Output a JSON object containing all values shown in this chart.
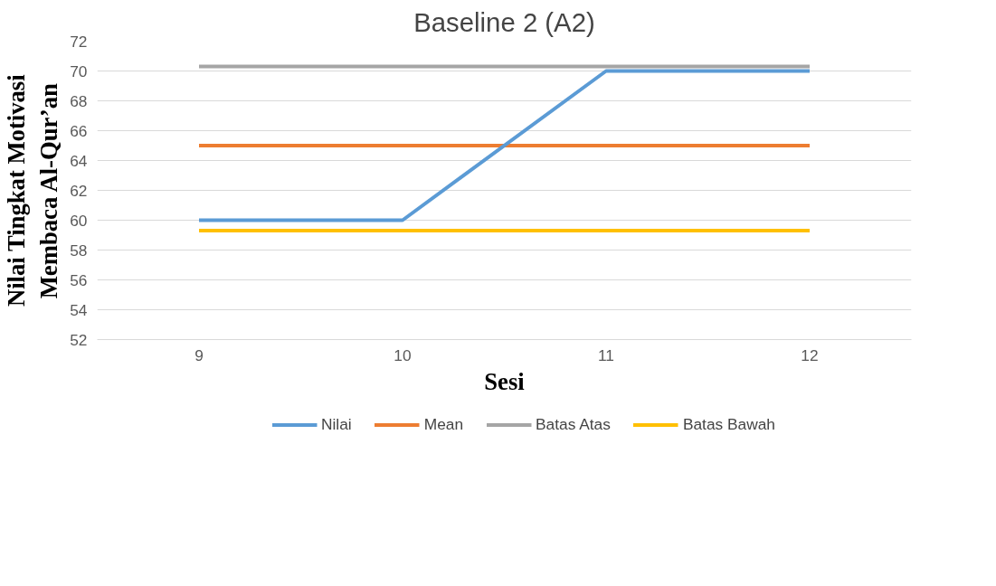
{
  "chart_data": {
    "type": "line",
    "title": "Baseline 2 (A2)",
    "xlabel": "Sesi",
    "ylabel": "Nilai Tingkat Motivasi\nMembaca Al-Qur’an",
    "categories": [
      "9",
      "10",
      "11",
      "12"
    ],
    "series": [
      {
        "name": "Nilai",
        "color": "#5b9bd5",
        "values": [
          60,
          60,
          70,
          70
        ]
      },
      {
        "name": "Mean",
        "color": "#ed7d31",
        "values": [
          65,
          65,
          65,
          65
        ]
      },
      {
        "name": "Batas Atas",
        "color": "#a5a5a5",
        "values": [
          70.3,
          70.3,
          70.3,
          70.3
        ]
      },
      {
        "name": "Batas Bawah",
        "color": "#ffc000",
        "values": [
          59.3,
          59.3,
          59.3,
          59.3
        ]
      }
    ],
    "ylim": [
      52,
      72
    ],
    "yticks": [
      52,
      54,
      56,
      58,
      60,
      62,
      64,
      66,
      68,
      70,
      72
    ],
    "grid": "y",
    "legend": "bottom",
    "marker": "none",
    "line_style": "solid"
  }
}
